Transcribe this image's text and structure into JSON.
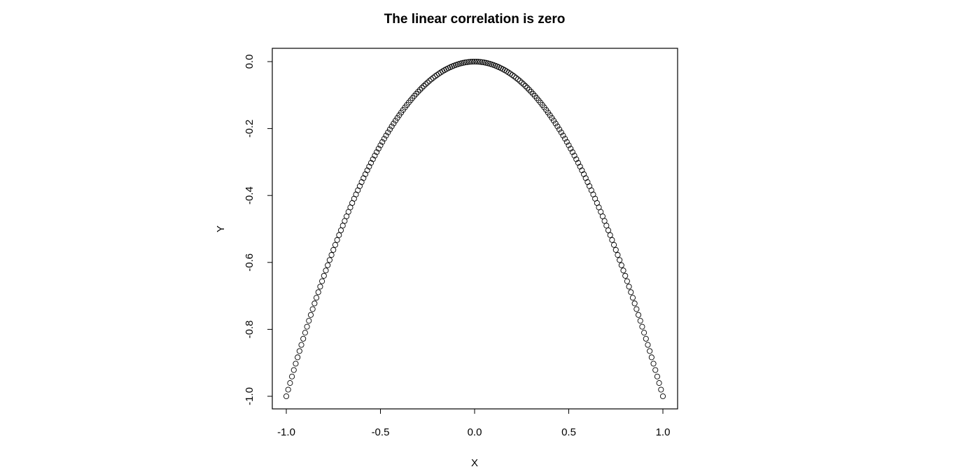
{
  "chart_data": {
    "type": "scatter",
    "title": "The linear correlation is zero",
    "xlabel": "X",
    "ylabel": "Y",
    "xlim": [
      -1.0,
      1.0
    ],
    "ylim": [
      -1.0,
      0.0
    ],
    "x_ticks": [
      "-1.0",
      "-0.5",
      "0.0",
      "0.5",
      "1.0"
    ],
    "y_ticks": [
      "-1.0",
      "-0.8",
      "-0.6",
      "-0.4",
      "-0.2",
      "0.0"
    ],
    "grid": false,
    "marker": "open-circle",
    "series": [
      {
        "x": [
          -1.0,
          -0.99,
          -0.98,
          -0.97,
          -0.96,
          -0.95,
          -0.94,
          -0.93,
          -0.92,
          -0.91,
          -0.9,
          -0.89,
          -0.88,
          -0.87,
          -0.86,
          -0.85,
          -0.84,
          -0.83,
          -0.82,
          -0.81,
          -0.8,
          -0.79,
          -0.78,
          -0.77,
          -0.76,
          -0.75,
          -0.74,
          -0.73,
          -0.72,
          -0.71,
          -0.7,
          -0.69,
          -0.68,
          -0.67,
          -0.66,
          -0.65,
          -0.64,
          -0.63,
          -0.62,
          -0.61,
          -0.6,
          -0.59,
          -0.58,
          -0.57,
          -0.56,
          -0.55,
          -0.54,
          -0.53,
          -0.52,
          -0.51,
          -0.5,
          -0.49,
          -0.48,
          -0.47,
          -0.46,
          -0.45,
          -0.44,
          -0.43,
          -0.42,
          -0.41,
          -0.4,
          -0.39,
          -0.38,
          -0.37,
          -0.36,
          -0.35,
          -0.34,
          -0.33,
          -0.32,
          -0.31,
          -0.3,
          -0.29,
          -0.28,
          -0.27,
          -0.26,
          -0.25,
          -0.24,
          -0.23,
          -0.22,
          -0.21,
          -0.2,
          -0.19,
          -0.18,
          -0.17,
          -0.16,
          -0.15,
          -0.14,
          -0.13,
          -0.12,
          -0.11,
          -0.1,
          -0.09,
          -0.08,
          -0.07,
          -0.06,
          -0.05,
          -0.04,
          -0.03,
          -0.02,
          -0.01,
          0.0,
          0.01,
          0.02,
          0.03,
          0.04,
          0.05,
          0.06,
          0.07,
          0.08,
          0.09,
          0.1,
          0.11,
          0.12,
          0.13,
          0.14,
          0.15,
          0.16,
          0.17,
          0.18,
          0.19,
          0.2,
          0.21,
          0.22,
          0.23,
          0.24,
          0.25,
          0.26,
          0.27,
          0.28,
          0.29,
          0.3,
          0.31,
          0.32,
          0.33,
          0.34,
          0.35,
          0.36,
          0.37,
          0.38,
          0.39,
          0.4,
          0.41,
          0.42,
          0.43,
          0.44,
          0.45,
          0.46,
          0.47,
          0.48,
          0.49,
          0.5,
          0.51,
          0.52,
          0.53,
          0.54,
          0.55,
          0.56,
          0.57,
          0.58,
          0.59,
          0.6,
          0.61,
          0.62,
          0.63,
          0.64,
          0.65,
          0.66,
          0.67,
          0.68,
          0.69,
          0.7,
          0.71,
          0.72,
          0.73,
          0.74,
          0.75,
          0.76,
          0.77,
          0.78,
          0.79,
          0.8,
          0.81,
          0.82,
          0.83,
          0.84,
          0.85,
          0.86,
          0.87,
          0.88,
          0.89,
          0.9,
          0.91,
          0.92,
          0.93,
          0.94,
          0.95,
          0.96,
          0.97,
          0.98,
          0.99,
          1.0
        ],
        "y": [
          -1.0,
          -0.9801,
          -0.9604,
          -0.9409,
          -0.9216,
          -0.9025,
          -0.8836,
          -0.8649,
          -0.8464,
          -0.8281,
          -0.81,
          -0.7921,
          -0.7744,
          -0.7569,
          -0.7396,
          -0.7225,
          -0.7056,
          -0.6889,
          -0.6724,
          -0.6561,
          -0.64,
          -0.6241,
          -0.6084,
          -0.5929,
          -0.5776,
          -0.5625,
          -0.5476,
          -0.5329,
          -0.5184,
          -0.5041,
          -0.49,
          -0.4761,
          -0.4624,
          -0.4489,
          -0.4356,
          -0.4225,
          -0.4096,
          -0.3969,
          -0.3844,
          -0.3721,
          -0.36,
          -0.3481,
          -0.3364,
          -0.3249,
          -0.3136,
          -0.3025,
          -0.2916,
          -0.2809,
          -0.2704,
          -0.2601,
          -0.25,
          -0.2401,
          -0.2304,
          -0.2209,
          -0.2116,
          -0.2025,
          -0.1936,
          -0.1849,
          -0.1764,
          -0.1681,
          -0.16,
          -0.1521,
          -0.1444,
          -0.1369,
          -0.1296,
          -0.1225,
          -0.1156,
          -0.1089,
          -0.1024,
          -0.0961,
          -0.09,
          -0.0841,
          -0.0784,
          -0.0729,
          -0.0676,
          -0.0625,
          -0.0576,
          -0.0529,
          -0.0484,
          -0.0441,
          -0.04,
          -0.0361,
          -0.0324,
          -0.0289,
          -0.0256,
          -0.0225,
          -0.0196,
          -0.0169,
          -0.0144,
          -0.0121,
          -0.01,
          -0.0081,
          -0.0064,
          -0.0049,
          -0.0036,
          -0.0025,
          -0.0016,
          -0.0009,
          -0.0004,
          -0.0001,
          0.0,
          -0.0001,
          -0.0004,
          -0.0009,
          -0.0016,
          -0.0025,
          -0.0036,
          -0.0049,
          -0.0064,
          -0.0081,
          -0.01,
          -0.0121,
          -0.0144,
          -0.0169,
          -0.0196,
          -0.0225,
          -0.0256,
          -0.0289,
          -0.0324,
          -0.0361,
          -0.04,
          -0.0441,
          -0.0484,
          -0.0529,
          -0.0576,
          -0.0625,
          -0.0676,
          -0.0729,
          -0.0784,
          -0.0841,
          -0.09,
          -0.0961,
          -0.1024,
          -0.1089,
          -0.1156,
          -0.1225,
          -0.1296,
          -0.1369,
          -0.1444,
          -0.1521,
          -0.16,
          -0.1681,
          -0.1764,
          -0.1849,
          -0.1936,
          -0.2025,
          -0.2116,
          -0.2209,
          -0.2304,
          -0.2401,
          -0.25,
          -0.2601,
          -0.2704,
          -0.2809,
          -0.2916,
          -0.3025,
          -0.3136,
          -0.3249,
          -0.3364,
          -0.3481,
          -0.36,
          -0.3721,
          -0.3844,
          -0.3969,
          -0.4096,
          -0.4225,
          -0.4356,
          -0.4489,
          -0.4624,
          -0.4761,
          -0.49,
          -0.5041,
          -0.5184,
          -0.5329,
          -0.5476,
          -0.5625,
          -0.5776,
          -0.5929,
          -0.6084,
          -0.6241,
          -0.64,
          -0.6561,
          -0.6724,
          -0.6889,
          -0.7056,
          -0.7225,
          -0.7396,
          -0.7569,
          -0.7744,
          -0.7921,
          -0.81,
          -0.8281,
          -0.8464,
          -0.8649,
          -0.8836,
          -0.9025,
          -0.9216,
          -0.9409,
          -0.9604,
          -0.9801,
          -1.0
        ]
      }
    ]
  }
}
